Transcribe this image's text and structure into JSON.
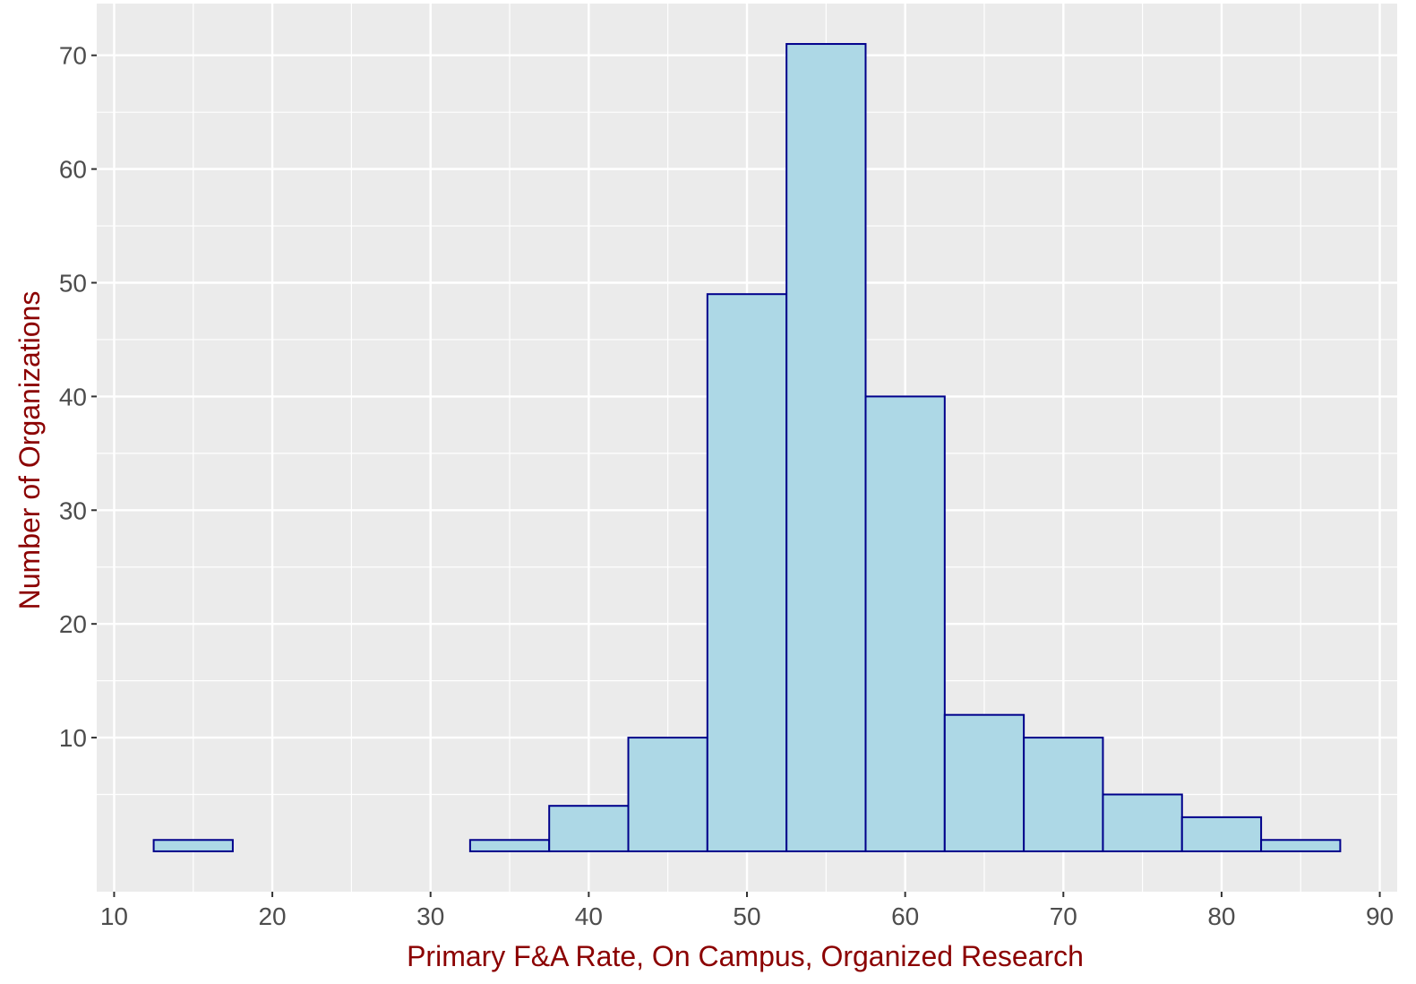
{
  "chart_data": {
    "type": "bar",
    "subtype": "histogram",
    "xlabel": "Primary F&A Rate, On Campus, Organized Research",
    "ylabel": "Number of Organizations",
    "bin_width": 5,
    "bins": [
      {
        "start": 12.5,
        "end": 17.5,
        "count": 1
      },
      {
        "start": 17.5,
        "end": 22.5,
        "count": 0
      },
      {
        "start": 22.5,
        "end": 27.5,
        "count": 0
      },
      {
        "start": 27.5,
        "end": 32.5,
        "count": 0
      },
      {
        "start": 32.5,
        "end": 37.5,
        "count": 1
      },
      {
        "start": 37.5,
        "end": 42.5,
        "count": 4
      },
      {
        "start": 42.5,
        "end": 47.5,
        "count": 10
      },
      {
        "start": 47.5,
        "end": 52.5,
        "count": 49
      },
      {
        "start": 52.5,
        "end": 57.5,
        "count": 71
      },
      {
        "start": 57.5,
        "end": 62.5,
        "count": 40
      },
      {
        "start": 62.5,
        "end": 67.5,
        "count": 12
      },
      {
        "start": 67.5,
        "end": 72.5,
        "count": 10
      },
      {
        "start": 72.5,
        "end": 77.5,
        "count": 5
      },
      {
        "start": 77.5,
        "end": 82.5,
        "count": 3
      },
      {
        "start": 82.5,
        "end": 87.5,
        "count": 1
      }
    ],
    "x_ticks": [
      10,
      20,
      30,
      40,
      50,
      60,
      70,
      80,
      90
    ],
    "y_ticks": [
      10,
      20,
      30,
      40,
      50,
      60,
      70
    ],
    "xlim": [
      8.9,
      91.1
    ],
    "ylim": [
      -3.55,
      74.55
    ],
    "grid": true,
    "colors": {
      "panel_background": "#EBEBEB",
      "grid_major": "#FFFFFF",
      "bar_fill": "#ADD8E6",
      "bar_outline": "#00008B",
      "axis_title": "#8B0000",
      "tick_text": "#4D4D4D",
      "tick_mark": "#333333"
    }
  }
}
